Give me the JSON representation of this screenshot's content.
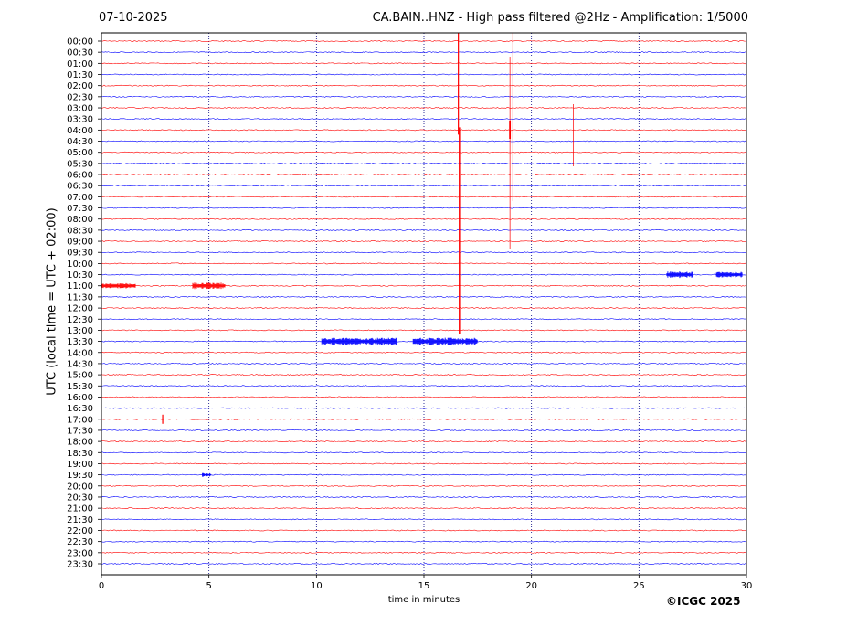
{
  "header": {
    "date": "07-10-2025",
    "title": "CA.BAIN..HNZ - High pass filtered @2Hz - Amplification: 1/5000"
  },
  "footer": {
    "copyright": "©ICGC 2025"
  },
  "chart_data": {
    "type": "line",
    "xlabel": "time in minutes",
    "ylabel": "UTC (local time = UTC + 02:00)",
    "xlim": [
      0,
      30
    ],
    "x_ticks": [
      0,
      5,
      10,
      15,
      20,
      25,
      30
    ],
    "grid": "vertical dotted lines at 5-minute intervals",
    "trace_colors": [
      "#ff0000",
      "#0000ff"
    ],
    "rows": [
      "00:00",
      "00:30",
      "01:00",
      "01:30",
      "02:00",
      "02:30",
      "03:00",
      "03:30",
      "04:00",
      "04:30",
      "05:00",
      "05:30",
      "06:00",
      "06:30",
      "07:00",
      "07:30",
      "08:00",
      "08:30",
      "09:00",
      "09:30",
      "10:00",
      "10:30",
      "11:00",
      "11:30",
      "12:00",
      "12:30",
      "13:00",
      "13:30",
      "14:00",
      "14:30",
      "15:00",
      "15:30",
      "16:00",
      "16:30",
      "17:00",
      "17:30",
      "18:00",
      "18:30",
      "19:00",
      "19:30",
      "20:00",
      "20:30",
      "21:00",
      "21:30",
      "22:00",
      "22:30",
      "23:00",
      "23:30"
    ],
    "events": [
      {
        "row": "00:00",
        "minute": 16.6,
        "color": "#ff0000"
      },
      {
        "row": "04:00",
        "minute": 16.65,
        "color": "#ff0000"
      },
      {
        "row": "01:00",
        "minute": 19.0,
        "color": "#ff0000"
      },
      {
        "row": "03:30",
        "minute": 21.95,
        "color": "#ff0000"
      },
      {
        "row": "10:30",
        "minute": 26.9,
        "color": "#0000ff"
      },
      {
        "row": "10:30",
        "minute": 29.2,
        "color": "#0000ff"
      },
      {
        "row": "11:00",
        "minute": 0.8,
        "color": "#ff0000"
      },
      {
        "row": "11:00",
        "minute": 5.0,
        "color": "#ff0000"
      },
      {
        "row": "13:30",
        "minute": 12.0,
        "color": "#0000ff"
      },
      {
        "row": "13:30",
        "minute": 16.0,
        "color": "#0000ff"
      },
      {
        "row": "17:00",
        "minute": 2.85,
        "color": "#ff0000"
      },
      {
        "row": "19:30",
        "minute": 4.9,
        "color": "#0000ff"
      }
    ]
  }
}
